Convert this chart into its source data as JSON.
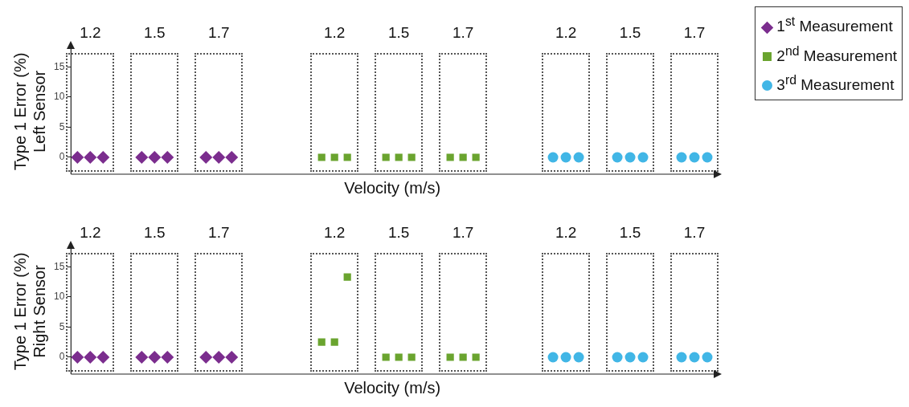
{
  "chart_data": [
    {
      "type": "scatter",
      "ylabel": "Type 1 Error (%)\nLeft Sensor",
      "xlabel": "Velocity (m/s)",
      "legend": "top right",
      "categories": [
        null,
        "1.2",
        null,
        null,
        null,
        null,
        "1.5",
        null,
        null,
        null,
        null,
        "1.7",
        null,
        null,
        null,
        null,
        null,
        null,
        null,
        null,
        "1.2",
        null,
        null,
        null,
        null,
        "1.5",
        null,
        null,
        null,
        null,
        "1.7",
        null,
        null,
        null,
        null,
        null,
        null,
        null,
        "1.2",
        null,
        null,
        null,
        null,
        "1.5",
        null,
        null,
        null,
        null,
        "1.7",
        null
      ],
      "ylim": [
        -2.8,
        18
      ],
      "yticks": [
        0,
        5,
        10,
        15
      ],
      "series": [
        {
          "name": "1$^{st}$ Measurement",
          "color": "#7b2d8e",
          "marker": "diamond",
          "values": [
            0,
            0,
            0,
            null,
            null,
            0,
            0,
            0,
            null,
            null,
            0,
            0,
            0,
            null,
            null,
            null,
            null,
            null,
            null,
            null,
            null,
            null,
            null,
            null,
            null,
            null,
            null,
            null,
            null,
            null,
            null,
            null,
            null,
            null,
            null,
            null,
            null,
            null,
            null,
            null,
            null,
            null,
            null,
            null,
            null,
            null,
            null,
            null,
            null,
            null
          ]
        },
        {
          "name": "2$^{nd}$ Measurement",
          "color": "#6aa42f",
          "marker": "square",
          "values": [
            null,
            null,
            null,
            null,
            null,
            null,
            null,
            null,
            null,
            null,
            null,
            null,
            null,
            null,
            null,
            null,
            null,
            null,
            null,
            0,
            0,
            0,
            null,
            null,
            0,
            0,
            0,
            null,
            null,
            0,
            0,
            0,
            null,
            null,
            null,
            null,
            null,
            null,
            null,
            null,
            null,
            null,
            null,
            null,
            null,
            null,
            null,
            null,
            null,
            null
          ]
        },
        {
          "name": "3$^{rd}$ Measurement",
          "color": "#41b6e6",
          "marker": "circle",
          "values": [
            null,
            null,
            null,
            null,
            null,
            null,
            null,
            null,
            null,
            null,
            null,
            null,
            null,
            null,
            null,
            null,
            null,
            null,
            null,
            null,
            null,
            null,
            null,
            null,
            null,
            null,
            null,
            null,
            null,
            null,
            null,
            null,
            null,
            null,
            null,
            null,
            null,
            0,
            0,
            0,
            null,
            null,
            0,
            0,
            0,
            null,
            null,
            0,
            0,
            0
          ]
        }
      ]
    },
    {
      "type": "scatter",
      "ylabel": "Type 1 Error (%)\nRight Sensor",
      "xlabel": "Velocity (m/s)",
      "categories": [
        null,
        "1.2",
        null,
        null,
        null,
        null,
        "1.5",
        null,
        null,
        null,
        null,
        "1.7",
        null,
        null,
        null,
        null,
        null,
        null,
        null,
        null,
        "1.2",
        null,
        null,
        null,
        null,
        "1.5",
        null,
        null,
        null,
        null,
        "1.7",
        null,
        null,
        null,
        null,
        null,
        null,
        null,
        "1.2",
        null,
        null,
        null,
        null,
        "1.5",
        null,
        null,
        null,
        null,
        "1.7",
        null
      ],
      "ylim": [
        -2.8,
        18
      ],
      "yticks": [
        0,
        5,
        10,
        15
      ],
      "series": [
        {
          "color": "#7b2d8e",
          "marker": "diamond",
          "values": [
            0,
            0,
            0,
            null,
            null,
            0,
            0,
            0,
            null,
            null,
            0,
            0,
            0,
            null,
            null,
            null,
            null,
            null,
            null,
            null,
            null,
            null,
            null,
            null,
            null,
            null,
            null,
            null,
            null,
            null,
            null,
            null,
            null,
            null,
            null,
            null,
            null,
            null,
            null,
            null,
            null,
            null,
            null,
            null,
            null,
            null,
            null,
            null,
            null,
            null
          ]
        },
        {
          "color": "#6aa42f",
          "marker": "square",
          "values": [
            null,
            null,
            null,
            null,
            null,
            null,
            null,
            null,
            null,
            null,
            null,
            null,
            null,
            null,
            null,
            null,
            null,
            null,
            null,
            2.5,
            2.5,
            13.3,
            null,
            null,
            0,
            0,
            0,
            null,
            null,
            0,
            0,
            0,
            null,
            null,
            null,
            null,
            null,
            null,
            null,
            null,
            null,
            null,
            null,
            null,
            null,
            null,
            null,
            null,
            null,
            null
          ]
        },
        {
          "color": "#41b6e6",
          "marker": "circle",
          "values": [
            null,
            null,
            null,
            null,
            null,
            null,
            null,
            null,
            null,
            null,
            null,
            null,
            null,
            null,
            null,
            null,
            null,
            null,
            null,
            null,
            null,
            null,
            null,
            null,
            null,
            null,
            null,
            null,
            null,
            null,
            null,
            null,
            null,
            null,
            null,
            null,
            null,
            0,
            0,
            0,
            null,
            null,
            0,
            0,
            0,
            null,
            null,
            0,
            0,
            0
          ]
        }
      ]
    }
  ]
}
